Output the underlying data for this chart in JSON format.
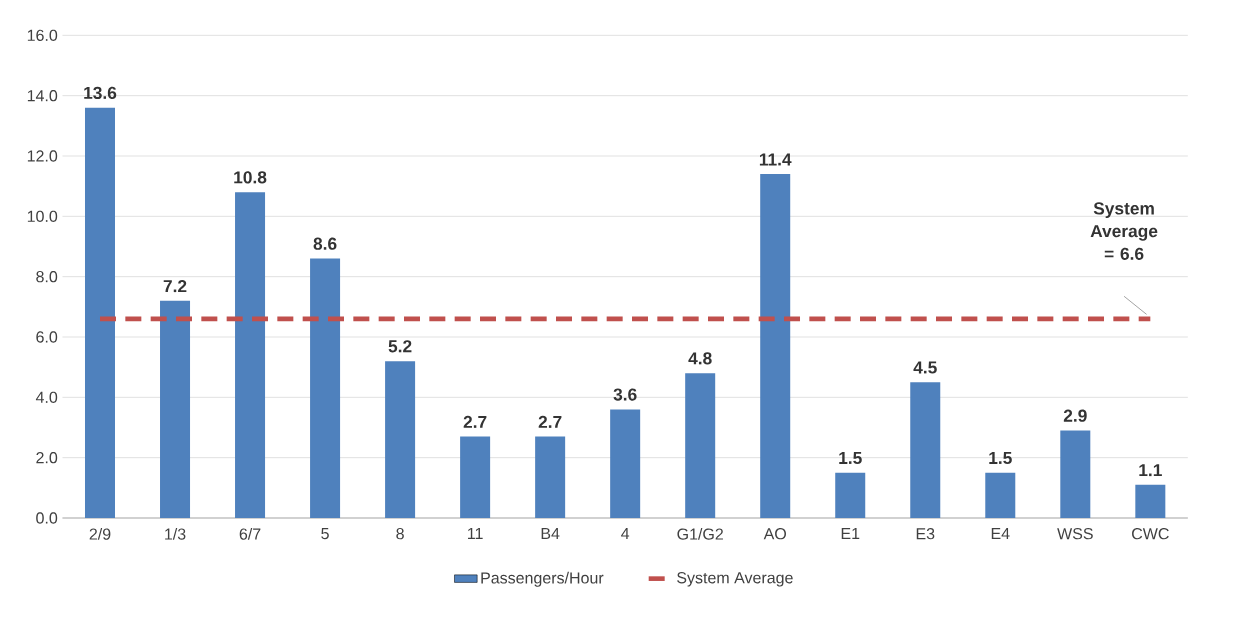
{
  "chart_data": {
    "type": "bar",
    "categories": [
      "2/9",
      "1/3",
      "6/7",
      "5",
      "8",
      "11",
      "B4",
      "4",
      "G1/G2",
      "AO",
      "E1",
      "E3",
      "E4",
      "WSS",
      "CWC"
    ],
    "series": [
      {
        "name": "Passengers/Hour",
        "color": "#4f81bd",
        "values": [
          13.6,
          7.2,
          10.8,
          8.6,
          5.2,
          2.7,
          2.7,
          3.6,
          4.8,
          11.4,
          1.5,
          4.5,
          1.5,
          2.9,
          1.1
        ],
        "value_labels": [
          "13.6",
          "7.2",
          "10.8",
          "8.6",
          "5.2",
          "2.7",
          "2.7",
          "3.6",
          "4.8",
          "11.4",
          "1.5",
          "4.5",
          "1.5",
          "2.9",
          "1.1"
        ]
      },
      {
        "name": "System Average",
        "type": "line",
        "color": "#c0504d",
        "line_style": "dashed",
        "values": [
          6.6,
          6.6,
          6.6,
          6.6,
          6.6,
          6.6,
          6.6,
          6.6,
          6.6,
          6.6,
          6.6,
          6.6,
          6.6,
          6.6,
          6.6
        ]
      }
    ],
    "ylim": [
      0,
      16
    ],
    "yticks": [
      {
        "value": 0,
        "label": "0.0"
      },
      {
        "value": 2,
        "label": "2.0"
      },
      {
        "value": 4,
        "label": "4.0"
      },
      {
        "value": 6,
        "label": "6.0"
      },
      {
        "value": 8,
        "label": "8.0"
      },
      {
        "value": 10,
        "label": "10.0"
      },
      {
        "value": 12,
        "label": "12.0"
      },
      {
        "value": 14,
        "label": "14.0"
      },
      {
        "value": 16,
        "label": "16.0"
      }
    ],
    "grid": "y",
    "legend": "bottom",
    "marker": "none",
    "annotations": [
      "System Average = 6.6"
    ]
  }
}
